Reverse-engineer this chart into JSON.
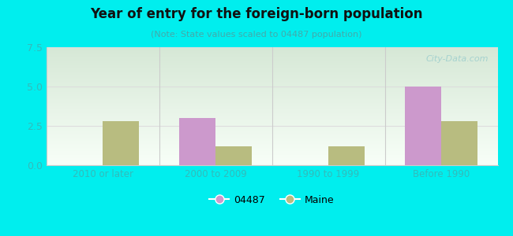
{
  "categories": [
    "2010 or later",
    "2000 to 2009",
    "1990 to 1999",
    "Before 1990"
  ],
  "series_04487": [
    0,
    3.0,
    0,
    5.0
  ],
  "series_maine": [
    2.8,
    1.2,
    1.2,
    2.8
  ],
  "bar_color_04487": "#cc99cc",
  "bar_color_maine": "#b8bc80",
  "title": "Year of entry for the foreign-born population",
  "subtitle": "(Note: State values scaled to 04487 population)",
  "ylim": [
    0,
    7.5
  ],
  "yticks": [
    0,
    2.5,
    5,
    7.5
  ],
  "legend_label_1": "04487",
  "legend_label_2": "Maine",
  "bg_color": "#00eeee",
  "plot_bg_top_left": "#d6e8d6",
  "plot_bg_bottom_right": "#f5fff5",
  "bar_width": 0.32,
  "watermark": "City-Data.com",
  "tick_color": "#33bbbb",
  "divider_color": "#cccccc",
  "grid_color": "#dddddd",
  "spine_color": "#cccccc"
}
